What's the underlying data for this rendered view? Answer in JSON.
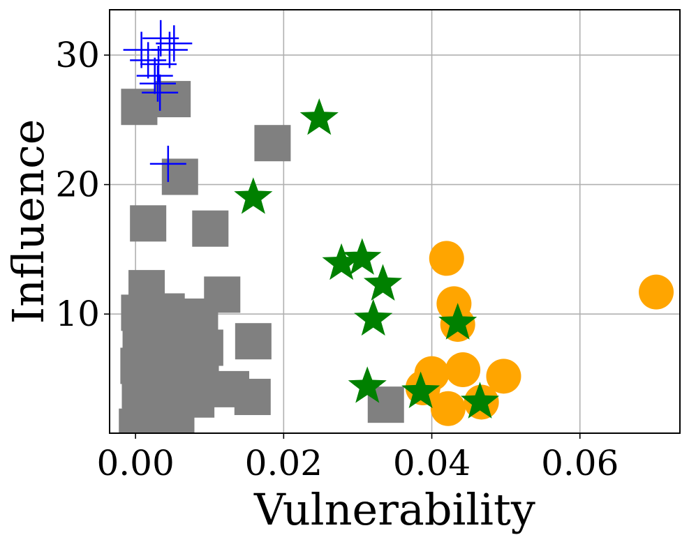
{
  "chart_data": {
    "type": "scatter",
    "title": "",
    "xlabel": "Vulnerability",
    "ylabel": "Influence",
    "xlim": [
      -0.0035,
      0.0735
    ],
    "ylim": [
      0.8,
      33.5
    ],
    "x_ticks": [
      0.0,
      0.02,
      0.04,
      0.06
    ],
    "x_tick_labels": [
      "0.00",
      "0.02",
      "0.04",
      "0.06"
    ],
    "y_ticks": [
      10,
      20,
      30
    ],
    "y_tick_labels": [
      "10",
      "20",
      "30"
    ],
    "grid": true,
    "legend": false,
    "colors": {
      "gray_squares": "#808080",
      "blue_plus": "#0000ff",
      "green_stars": "#008000",
      "orange_circles": "#ffa500",
      "grid": "#b0b0b0",
      "axes": "#000000"
    },
    "series": [
      {
        "marker": "square",
        "color": "#808080",
        "x": [
          0.0005,
          0.005,
          0.0185,
          0.006,
          0.0017,
          0.0101,
          0.0015,
          0.0117,
          0.0005,
          0.0023,
          0.0042,
          0.0065,
          0.0087,
          0.0007,
          0.0027,
          0.0052,
          0.0075,
          0.0094,
          0.0159,
          0.0004,
          0.0025,
          0.0046,
          0.0069,
          0.0088,
          0.0006,
          0.0034,
          0.0054,
          0.0082,
          0.0129,
          0.0158,
          0.0007,
          0.0031,
          0.0055,
          0.0036,
          0.0338,
          0.0002,
          0.0018
        ],
        "y": [
          26.0,
          26.6,
          23.2,
          20.6,
          17.0,
          16.6,
          12.0,
          11.5,
          10.1,
          9.4,
          10.2,
          9.3,
          9.8,
          7.9,
          8.1,
          7.6,
          8.3,
          7.4,
          7.9,
          6.0,
          6.0,
          6.3,
          5.6,
          6.0,
          4.1,
          3.9,
          4.0,
          3.4,
          4.2,
          3.6,
          2.5,
          2.0,
          1.9,
          2.8,
          3.0,
          1.3,
          1.1
        ]
      },
      {
        "marker": "plus",
        "color": "#0000ff",
        "x": [
          0.0008,
          0.0034,
          0.0052,
          0.0046,
          0.0017,
          0.0031,
          0.0026,
          0.003,
          0.0033,
          0.0044
        ],
        "y": [
          30.4,
          31.3,
          30.9,
          30.4,
          29.6,
          29.3,
          28.4,
          27.8,
          27.1,
          21.6
        ]
      },
      {
        "marker": "star",
        "color": "#008000",
        "x": [
          0.0248,
          0.0159,
          0.0278,
          0.0306,
          0.0334,
          0.0321,
          0.0435,
          0.0313,
          0.0385,
          0.0465
        ],
        "y": [
          25.1,
          19.0,
          13.9,
          14.3,
          12.3,
          9.6,
          9.3,
          4.4,
          4.0,
          3.2
        ]
      },
      {
        "marker": "circle",
        "color": "#ffa500",
        "x": [
          0.042,
          0.043,
          0.0435,
          0.04,
          0.0442,
          0.0497,
          0.0388,
          0.0422,
          0.0467,
          0.0703
        ],
        "y": [
          14.3,
          10.8,
          9.2,
          5.4,
          5.7,
          5.2,
          4.3,
          2.7,
          3.2,
          11.7
        ]
      }
    ]
  }
}
